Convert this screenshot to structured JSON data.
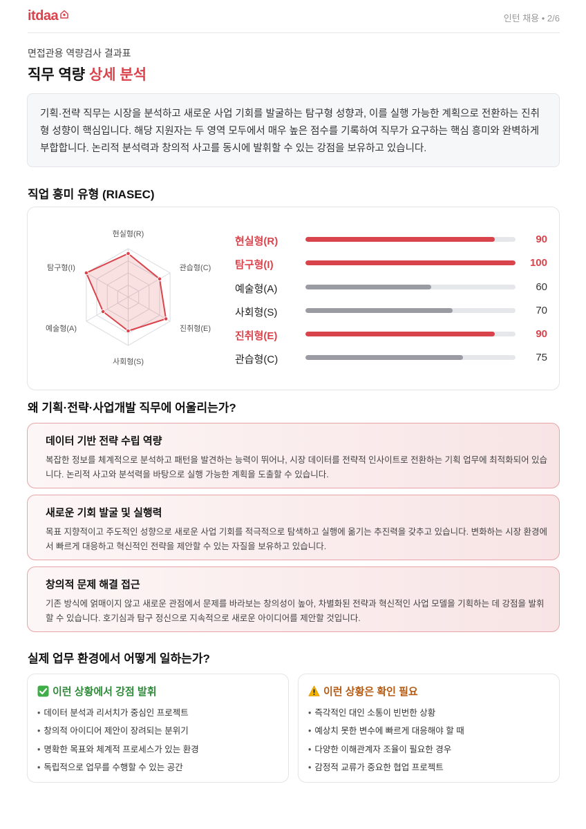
{
  "header": {
    "logo_text": "itdaa",
    "page_info": "인턴 채용 • 2/6"
  },
  "subtitle": "면접관용 역량검사 결과표",
  "title": {
    "main": "직무 역량 ",
    "accent": "상세 분석"
  },
  "summary": "기획·전략 직무는 시장을 분석하고 새로운 사업 기회를 발굴하는 탐구형 성향과, 이를 실행 가능한 계획으로 전환하는 진취형 성향이 핵심입니다. 해당 지원자는 두 영역 모두에서 매우 높은 점수를 기록하여 직무가 요구하는 핵심 흥미와 완벽하게 부합합니다. 논리적 분석력과 창의적 사고를 동시에 발휘할 수 있는 강점을 보유하고 있습니다.",
  "riasec": {
    "section_title": "직업 흥미 유형 (RIASEC)",
    "radar_labels": [
      "현실형(R)",
      "관습형(C)",
      "진취형(E)",
      "사회형(S)",
      "예술형(A)",
      "탐구형(I)"
    ],
    "items": [
      {
        "label": "현실형(R)",
        "value": 90,
        "display": "90",
        "highlight": true
      },
      {
        "label": "탐구형(I)",
        "value": 100,
        "display": "100",
        "highlight": true
      },
      {
        "label": "예술형(A)",
        "value": 60,
        "display": "60",
        "highlight": false
      },
      {
        "label": "사회형(S)",
        "value": 70,
        "display": "70",
        "highlight": false
      },
      {
        "label": "진취형(E)",
        "value": 90,
        "display": "90",
        "highlight": true
      },
      {
        "label": "관습형(C)",
        "value": 75,
        "display": "75",
        "highlight": false
      }
    ],
    "colors": {
      "accent": "#d9434b",
      "neutral": "#9b9ca3"
    }
  },
  "reasons": {
    "section_title": "왜 기획·전략·사업개발 직무에 어울리는가?",
    "cards": [
      {
        "title": "데이터 기반 전략 수립 역량",
        "desc": "복잡한 정보를 체계적으로 분석하고 패턴을 발견하는 능력이 뛰어나, 시장 데이터를 전략적 인사이트로 전환하는 기획 업무에 최적화되어 있습니다. 논리적 사고와 분석력을 바탕으로 실행 가능한 계획을 도출할 수 있습니다."
      },
      {
        "title": "새로운 기회 발굴 및 실행력",
        "desc": "목표 지향적이고 주도적인 성향으로 새로운 사업 기회를 적극적으로 탐색하고 실행에 옮기는 추진력을 갖추고 있습니다. 변화하는 시장 환경에서 빠르게 대응하고 혁신적인 전략을 제안할 수 있는 자질을 보유하고 있습니다."
      },
      {
        "title": "창의적 문제 해결 접근",
        "desc": "기존 방식에 얽매이지 않고 새로운 관점에서 문제를 바라보는 창의성이 높아, 차별화된 전략과 혁신적인 사업 모델을 기획하는 데 강점을 발휘할 수 있습니다. 호기심과 탐구 정신으로 지속적으로 새로운 아이디어를 제안할 것입니다."
      }
    ]
  },
  "work_env": {
    "section_title": "실제 업무 환경에서 어떻게 일하는가?",
    "strengths": {
      "title": "이런 상황에서 강점 발휘",
      "icon": "check-icon",
      "items": [
        "데이터 분석과 리서치가 중심인 프로젝트",
        "창의적 아이디어 제안이 장려되는 분위기",
        "명확한 목표와 체계적 프로세스가 있는 환경",
        "독립적으로 업무를 수행할 수 있는 공간"
      ]
    },
    "cautions": {
      "title": "이런 상황은 확인 필요",
      "icon": "warning-icon",
      "items": [
        "즉각적인 대인 소통이 빈번한 상황",
        "예상치 못한 변수에 빠르게 대응해야 할 때",
        "다양한 이해관계자 조율이 필요한 경우",
        "감정적 교류가 중요한 협업 프로젝트"
      ]
    }
  }
}
